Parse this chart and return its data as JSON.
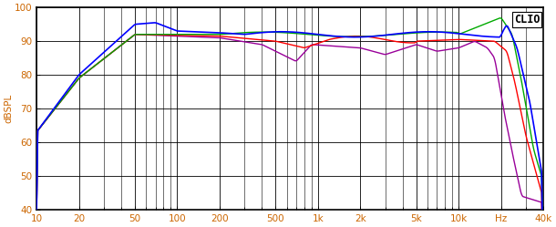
{
  "title": "CLIO",
  "ylabel": "dBSPL",
  "xlabel_ticks": [
    10,
    20,
    50,
    100,
    200,
    500,
    1000,
    2000,
    5000,
    10000,
    20000,
    40000
  ],
  "xlabel_labels": [
    "10",
    "20",
    "50",
    "100",
    "200",
    "500",
    "1k",
    "2k",
    "5k",
    "10k",
    "Hz",
    "40k"
  ],
  "xlim": [
    10,
    40000
  ],
  "ylim": [
    40,
    100
  ],
  "yticks": [
    40,
    50,
    60,
    70,
    80,
    90,
    100
  ],
  "bg_color": "#ffffff",
  "grid_color": "#000000",
  "line_colors": [
    "#0000ff",
    "#ff0000",
    "#00aa00",
    "#990099"
  ],
  "tick_color": "#cc6600",
  "label_color": "#cc6600"
}
